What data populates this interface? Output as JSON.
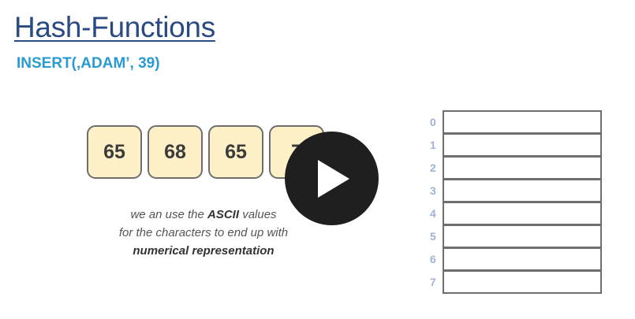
{
  "slide": {
    "title": "Hash-Functions",
    "subtitle": "INSERT(‚ADAM’, 39)",
    "ascii_values": [
      "65",
      "68",
      "65",
      "7"
    ],
    "caption": {
      "line1_pre": "we an use the ",
      "line1_bold": "ASCII",
      "line1_post": " values",
      "line2": "for the characters to end up with",
      "line3_bold": "numerical representation"
    },
    "table_indices": [
      "0",
      "1",
      "2",
      "3",
      "4",
      "5",
      "6",
      "7"
    ]
  },
  "player": {
    "play_icon": "play-icon",
    "background_color": "#1f1f1f"
  },
  "colors": {
    "title": "#2a4a82",
    "subtitle": "#2a9bd2",
    "box_fill": "#fdf0c6",
    "index": "#9fb3d8"
  }
}
